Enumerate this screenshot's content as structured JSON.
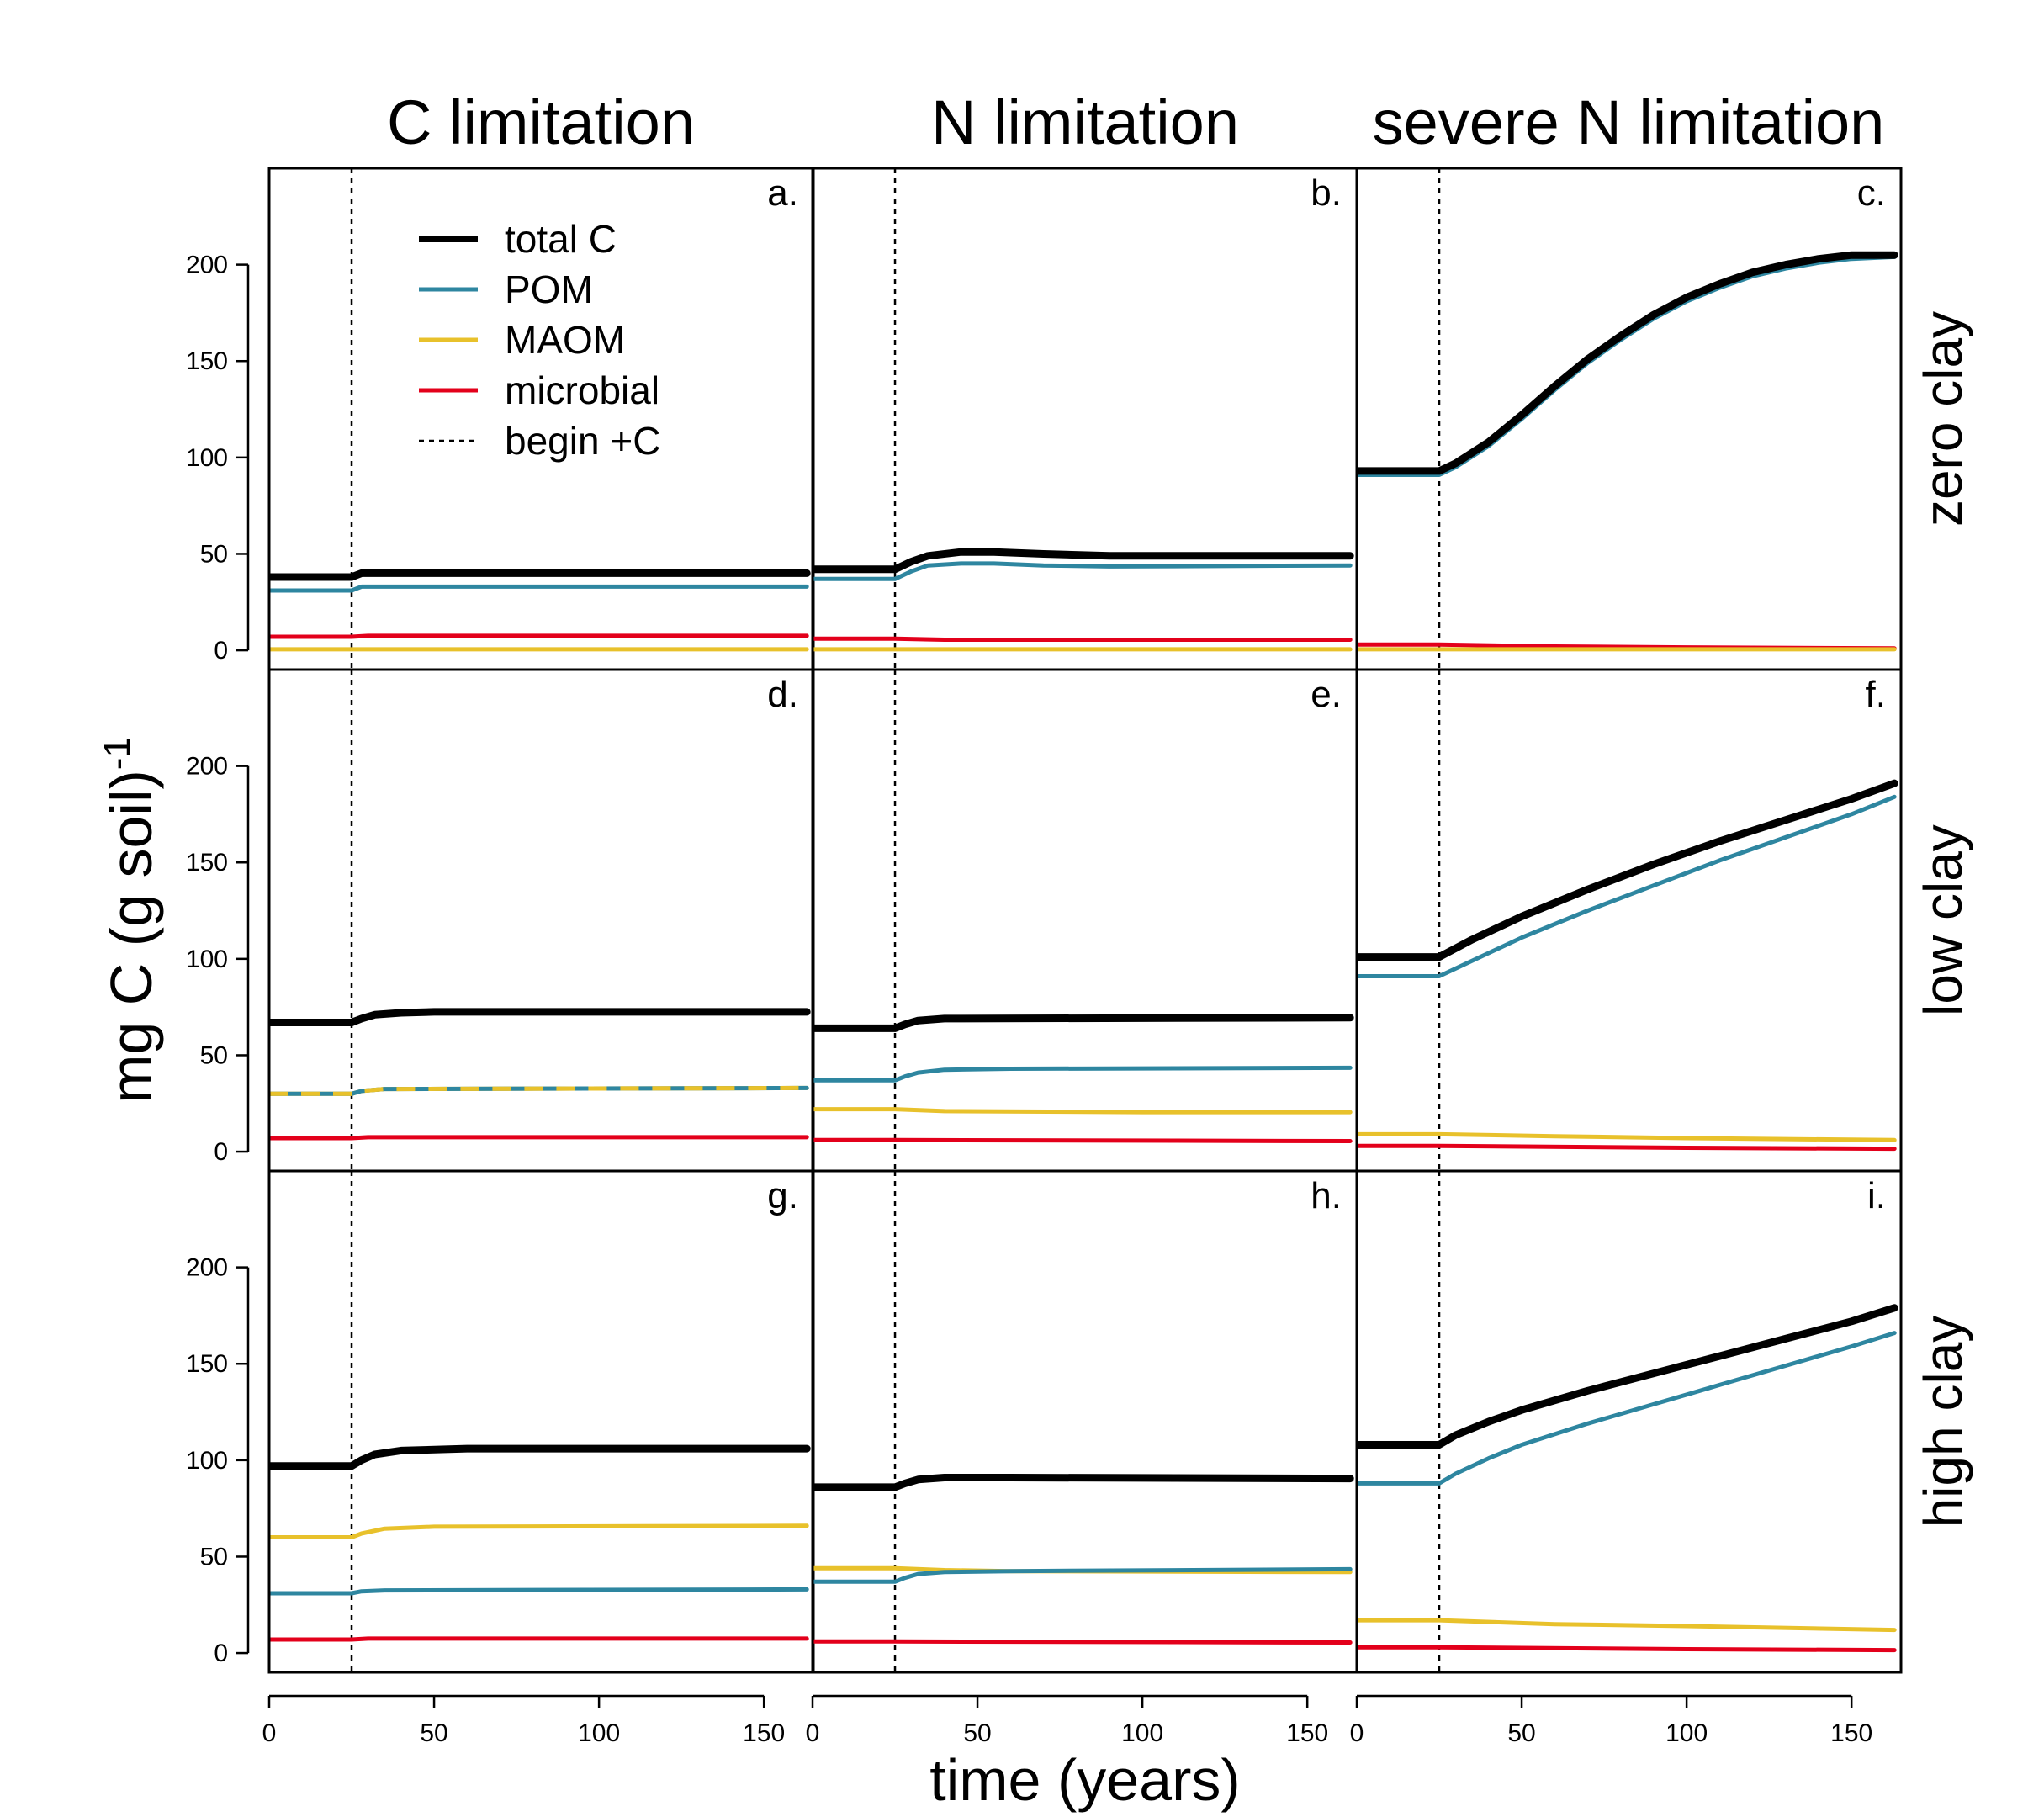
{
  "column_titles": [
    "C limitation",
    "N limitation",
    "severe N limitation"
  ],
  "row_titles": [
    "zero clay",
    "low clay",
    "high clay"
  ],
  "xlabel": "time (years)",
  "ylabel_main": "mg C (g soil)",
  "ylabel_sup": "-1",
  "legend": [
    {
      "key": "total",
      "label": "total C"
    },
    {
      "key": "pom",
      "label": "POM"
    },
    {
      "key": "maom",
      "label": "MAOM"
    },
    {
      "key": "microbial",
      "label": "microbial"
    },
    {
      "key": "begin",
      "label": "begin +C"
    }
  ],
  "colors": {
    "total": "#000000",
    "pom": "#2e86a0",
    "maom": "#e8c12b",
    "microbial": "#e3001b",
    "begin": "#000000"
  },
  "chart_data": {
    "type": "line",
    "xlim": [
      0,
      165
    ],
    "ylim": [
      -10,
      250
    ],
    "xticks": [
      0,
      50,
      100,
      150
    ],
    "yticks": [
      0,
      50,
      100,
      150,
      200
    ],
    "begin_c": 25,
    "panels": [
      {
        "letter": "a.",
        "series": {
          "total": [
            [
              0,
              38
            ],
            [
              25,
              38
            ],
            [
              28,
              40
            ],
            [
              35,
              40
            ],
            [
              163,
              40
            ]
          ],
          "pom": [
            [
              0,
              31
            ],
            [
              25,
              31
            ],
            [
              28,
              33
            ],
            [
              35,
              33
            ],
            [
              163,
              33
            ]
          ],
          "maom": [
            [
              0,
              0.5
            ],
            [
              163,
              0.5
            ]
          ],
          "microbial": [
            [
              0,
              7
            ],
            [
              25,
              7
            ],
            [
              30,
              7.5
            ],
            [
              163,
              7.5
            ]
          ]
        }
      },
      {
        "letter": "b.",
        "series": {
          "total": [
            [
              0,
              42
            ],
            [
              25,
              42
            ],
            [
              30,
              46
            ],
            [
              35,
              49
            ],
            [
              45,
              51
            ],
            [
              55,
              51
            ],
            [
              70,
              50
            ],
            [
              90,
              49
            ],
            [
              163,
              49
            ]
          ],
          "pom": [
            [
              0,
              37
            ],
            [
              25,
              37
            ],
            [
              30,
              41
            ],
            [
              35,
              44
            ],
            [
              45,
              45
            ],
            [
              55,
              45
            ],
            [
              70,
              44
            ],
            [
              90,
              43.5
            ],
            [
              163,
              44
            ]
          ],
          "maom": [
            [
              0,
              0.5
            ],
            [
              163,
              0.5
            ]
          ],
          "microbial": [
            [
              0,
              6
            ],
            [
              25,
              6
            ],
            [
              40,
              5.5
            ],
            [
              163,
              5.5
            ]
          ]
        }
      },
      {
        "letter": "c.",
        "series": {
          "total": [
            [
              0,
              93
            ],
            [
              25,
              93
            ],
            [
              30,
              97
            ],
            [
              40,
              108
            ],
            [
              50,
              122
            ],
            [
              60,
              137
            ],
            [
              70,
              151
            ],
            [
              80,
              163
            ],
            [
              90,
              174
            ],
            [
              100,
              183
            ],
            [
              110,
              190
            ],
            [
              120,
              196
            ],
            [
              130,
              200
            ],
            [
              140,
              203
            ],
            [
              150,
              205
            ],
            [
              163,
              205
            ]
          ],
          "pom": [
            [
              0,
              91
            ],
            [
              25,
              91
            ],
            [
              30,
              95
            ],
            [
              40,
              106
            ],
            [
              50,
              120
            ],
            [
              60,
              135
            ],
            [
              70,
              149
            ],
            [
              80,
              161
            ],
            [
              90,
              172
            ],
            [
              100,
              181
            ],
            [
              110,
              188
            ],
            [
              120,
              194
            ],
            [
              130,
              198
            ],
            [
              140,
              201
            ],
            [
              150,
              203
            ],
            [
              163,
              204
            ]
          ],
          "maom": [
            [
              0,
              0.5
            ],
            [
              163,
              0.5
            ]
          ],
          "microbial": [
            [
              0,
              3
            ],
            [
              25,
              3
            ],
            [
              60,
              2
            ],
            [
              100,
              1.5
            ],
            [
              163,
              1
            ]
          ]
        }
      },
      {
        "letter": "d.",
        "series": {
          "total": [
            [
              0,
              67
            ],
            [
              25,
              67
            ],
            [
              28,
              69
            ],
            [
              32,
              71
            ],
            [
              40,
              72
            ],
            [
              50,
              72.5
            ],
            [
              163,
              72.5
            ]
          ],
          "pom": [
            [
              0,
              30
            ],
            [
              25,
              30
            ],
            [
              28,
              31.5
            ],
            [
              35,
              32.5
            ],
            [
              163,
              33
            ]
          ],
          "maom": [
            [
              0,
              30
            ],
            [
              25,
              30
            ],
            [
              28,
              31.5
            ],
            [
              35,
              32.5
            ],
            [
              163,
              33
            ]
          ],
          "microbial": [
            [
              0,
              7
            ],
            [
              25,
              7
            ],
            [
              30,
              7.5
            ],
            [
              163,
              7.5
            ]
          ]
        }
      },
      {
        "letter": "e.",
        "series": {
          "total": [
            [
              0,
              64
            ],
            [
              25,
              64
            ],
            [
              28,
              66
            ],
            [
              32,
              68
            ],
            [
              40,
              69
            ],
            [
              163,
              69.5
            ]
          ],
          "pom": [
            [
              0,
              37
            ],
            [
              25,
              37
            ],
            [
              28,
              39
            ],
            [
              32,
              41
            ],
            [
              40,
              42.5
            ],
            [
              60,
              43
            ],
            [
              163,
              43.5
            ]
          ],
          "maom": [
            [
              0,
              22
            ],
            [
              25,
              22
            ],
            [
              40,
              21
            ],
            [
              100,
              20.5
            ],
            [
              163,
              20.5
            ]
          ],
          "microbial": [
            [
              0,
              6
            ],
            [
              25,
              6
            ],
            [
              163,
              5.5
            ]
          ]
        }
      },
      {
        "letter": "f.",
        "series": {
          "total": [
            [
              0,
              101
            ],
            [
              25,
              101
            ],
            [
              35,
              110
            ],
            [
              50,
              122
            ],
            [
              70,
              136
            ],
            [
              90,
              149
            ],
            [
              110,
              161
            ],
            [
              130,
              172
            ],
            [
              150,
              183
            ],
            [
              163,
              191
            ]
          ],
          "pom": [
            [
              0,
              91
            ],
            [
              25,
              91
            ],
            [
              35,
              99
            ],
            [
              50,
              111
            ],
            [
              70,
              125
            ],
            [
              90,
              138
            ],
            [
              110,
              151
            ],
            [
              130,
              163
            ],
            [
              150,
              175
            ],
            [
              163,
              184
            ]
          ],
          "maom": [
            [
              0,
              9
            ],
            [
              25,
              9
            ],
            [
              60,
              8
            ],
            [
              100,
              7
            ],
            [
              163,
              6
            ]
          ],
          "microbial": [
            [
              0,
              3
            ],
            [
              25,
              3
            ],
            [
              100,
              2
            ],
            [
              163,
              1.5
            ]
          ]
        }
      },
      {
        "letter": "g.",
        "series": {
          "total": [
            [
              0,
              97
            ],
            [
              25,
              97
            ],
            [
              28,
              100
            ],
            [
              32,
              103
            ],
            [
              40,
              105
            ],
            [
              60,
              106
            ],
            [
              163,
              106
            ]
          ],
          "pom": [
            [
              0,
              31
            ],
            [
              25,
              31
            ],
            [
              28,
              32
            ],
            [
              35,
              32.5
            ],
            [
              163,
              33
            ]
          ],
          "maom": [
            [
              0,
              60
            ],
            [
              25,
              60
            ],
            [
              28,
              62
            ],
            [
              35,
              64.5
            ],
            [
              50,
              65.5
            ],
            [
              163,
              66
            ]
          ],
          "microbial": [
            [
              0,
              7
            ],
            [
              25,
              7
            ],
            [
              30,
              7.5
            ],
            [
              163,
              7.5
            ]
          ]
        }
      },
      {
        "letter": "h.",
        "series": {
          "total": [
            [
              0,
              86
            ],
            [
              25,
              86
            ],
            [
              28,
              88
            ],
            [
              32,
              90
            ],
            [
              40,
              91
            ],
            [
              60,
              91
            ],
            [
              163,
              90.5
            ]
          ],
          "pom": [
            [
              0,
              37
            ],
            [
              25,
              37
            ],
            [
              28,
              39
            ],
            [
              32,
              41
            ],
            [
              40,
              42
            ],
            [
              60,
              42.5
            ],
            [
              163,
              43.5
            ]
          ],
          "maom": [
            [
              0,
              44
            ],
            [
              25,
              44
            ],
            [
              40,
              43
            ],
            [
              60,
              42.5
            ],
            [
              163,
              42
            ]
          ],
          "microbial": [
            [
              0,
              6
            ],
            [
              25,
              6
            ],
            [
              163,
              5.5
            ]
          ]
        }
      },
      {
        "letter": "i.",
        "series": {
          "total": [
            [
              0,
              108
            ],
            [
              25,
              108
            ],
            [
              30,
              113
            ],
            [
              40,
              120
            ],
            [
              50,
              126
            ],
            [
              70,
              136
            ],
            [
              90,
              145
            ],
            [
              110,
              154
            ],
            [
              130,
              163
            ],
            [
              150,
              172
            ],
            [
              163,
              179
            ]
          ],
          "pom": [
            [
              0,
              88
            ],
            [
              25,
              88
            ],
            [
              30,
              93
            ],
            [
              40,
              101
            ],
            [
              50,
              108
            ],
            [
              70,
              119
            ],
            [
              90,
              129
            ],
            [
              110,
              139
            ],
            [
              130,
              149
            ],
            [
              150,
              159
            ],
            [
              163,
              166
            ]
          ],
          "maom": [
            [
              0,
              17
            ],
            [
              25,
              17
            ],
            [
              60,
              15
            ],
            [
              100,
              14
            ],
            [
              163,
              12
            ]
          ],
          "microbial": [
            [
              0,
              3
            ],
            [
              25,
              3
            ],
            [
              100,
              2
            ],
            [
              163,
              1.5
            ]
          ]
        }
      }
    ]
  }
}
